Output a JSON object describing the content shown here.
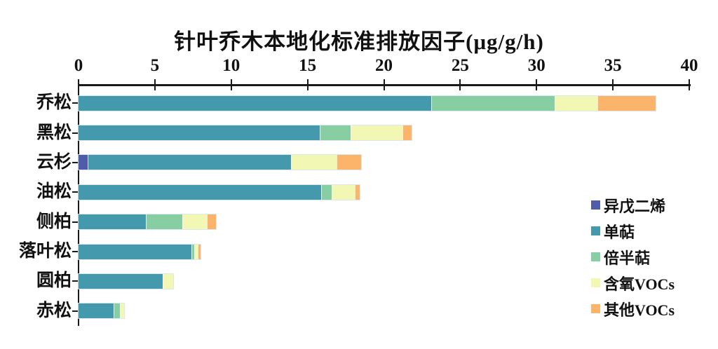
{
  "chart_data": {
    "type": "bar",
    "orientation": "horizontal-stacked",
    "title": "针叶乔木本地化标准排放因子(μg/g/h)",
    "categories": [
      "乔松",
      "黑松",
      "云杉",
      "油松",
      "侧柏",
      "落叶松",
      "圆柏",
      "赤松"
    ],
    "series": [
      {
        "name": "异戊二烯",
        "color": "#4F5CAA",
        "values": [
          0,
          0,
          0.6,
          0,
          0,
          0,
          0,
          0
        ]
      },
      {
        "name": "单萜",
        "color": "#4599AC",
        "values": [
          23.1,
          15.8,
          13.3,
          15.9,
          4.4,
          7.4,
          5.5,
          2.3
        ]
      },
      {
        "name": "倍半萜",
        "color": "#87CEA3",
        "values": [
          8.1,
          2.0,
          0,
          0.7,
          2.4,
          0.2,
          0,
          0.4
        ]
      },
      {
        "name": "含氧VOCs",
        "color": "#F3F7B4",
        "values": [
          2.8,
          3.4,
          3.0,
          1.5,
          1.6,
          0.2,
          0.7,
          0.3
        ]
      },
      {
        "name": "其他VOCs",
        "color": "#FBB46A",
        "values": [
          3.8,
          0.6,
          1.6,
          0.3,
          0.6,
          0.2,
          0,
          0
        ]
      }
    ],
    "totals": [
      37.8,
      21.8,
      18.5,
      18.4,
      9.0,
      8.0,
      6.2,
      3.0
    ],
    "x_axis": {
      "min": 0,
      "max": 40,
      "ticks": [
        0,
        5,
        10,
        15,
        20,
        25,
        30,
        35,
        40
      ],
      "position": "top"
    },
    "y_axis": {
      "position": "left"
    },
    "legend": {
      "position": "right"
    },
    "grid": false,
    "axis_color": "#1a1a1a",
    "text_color": "#111111"
  }
}
